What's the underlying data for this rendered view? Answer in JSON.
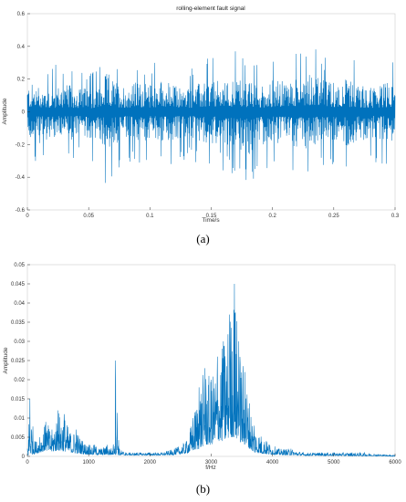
{
  "colors": {
    "series": "#0072BD",
    "axis": "#333333",
    "frame": "#cccccc"
  },
  "chart_data": [
    {
      "type": "line",
      "title": "rolling-element fault signal",
      "xlabel": "Time/s",
      "ylabel": "Amplitude",
      "panel_label": "(a)",
      "xlim": [
        0,
        0.3
      ],
      "ylim": [
        -0.6,
        0.6
      ],
      "xticks": [
        0,
        0.05,
        0.1,
        0.15,
        0.2,
        0.25,
        0.3
      ],
      "xtick_labels": [
        "0",
        "0.05",
        "0.1",
        "0.15",
        "0.2",
        "0.25",
        "0.3"
      ],
      "yticks": [
        -0.6,
        -0.4,
        -0.2,
        0,
        0.2,
        0.4,
        0.6
      ],
      "ytick_labels": [
        "-0.6",
        "-0.4",
        "-0.2",
        "0",
        "0.2",
        "0.4",
        "0.6"
      ],
      "grid": false,
      "series": [
        {
          "x": [
            0,
            0.01,
            0.02,
            0.03,
            0.04,
            0.05,
            0.06,
            0.065,
            0.07,
            0.08,
            0.09,
            0.1,
            0.11,
            0.12,
            0.13,
            0.14,
            0.15,
            0.16,
            0.17,
            0.18,
            0.19,
            0.2,
            0.21,
            0.22,
            0.23,
            0.24,
            0.25,
            0.26,
            0.27,
            0.28,
            0.29,
            0.3
          ],
          "max": [
            0.32,
            0.3,
            0.28,
            0.31,
            0.29,
            0.26,
            0.3,
            0.45,
            0.36,
            0.3,
            0.34,
            0.31,
            0.37,
            0.3,
            0.28,
            0.32,
            0.36,
            0.33,
            0.4,
            0.34,
            0.3,
            0.36,
            0.34,
            0.38,
            0.5,
            0.36,
            0.34,
            0.37,
            0.31,
            0.28,
            0.33,
            0.34
          ],
          "min": [
            -0.3,
            -0.35,
            -0.3,
            -0.33,
            -0.3,
            -0.3,
            -0.35,
            -0.48,
            -0.38,
            -0.32,
            -0.35,
            -0.3,
            -0.36,
            -0.32,
            -0.3,
            -0.33,
            -0.35,
            -0.36,
            -0.4,
            -0.5,
            -0.38,
            -0.35,
            -0.36,
            -0.4,
            -0.42,
            -0.35,
            -0.32,
            -0.38,
            -0.34,
            -0.3,
            -0.32,
            -0.32
          ]
        }
      ]
    },
    {
      "type": "line",
      "title": "",
      "xlabel": "f/Hz",
      "ylabel": "Amplitude",
      "panel_label": "(b)",
      "xlim": [
        0,
        6000
      ],
      "ylim": [
        0,
        0.05
      ],
      "xticks": [
        0,
        1000,
        2000,
        3000,
        4000,
        5000,
        6000
      ],
      "xtick_labels": [
        "0",
        "1000",
        "2000",
        "3000",
        "4000",
        "5000",
        "6000"
      ],
      "yticks": [
        0,
        0.005,
        0.01,
        0.015,
        0.02,
        0.025,
        0.03,
        0.035,
        0.04,
        0.045,
        0.05
      ],
      "ytick_labels": [
        "0",
        "0.005",
        "0.01",
        "0.015",
        "0.02",
        "0.025",
        "0.03",
        "0.035",
        "0.04",
        "0.045",
        "0.05"
      ],
      "grid": false,
      "series": [
        {
          "x": [
            0,
            40,
            120,
            200,
            300,
            400,
            500,
            600,
            700,
            800,
            900,
            1000,
            1100,
            1200,
            1300,
            1400,
            1440,
            1500,
            1600,
            1800,
            2000,
            2200,
            2400,
            2600,
            2700,
            2800,
            2900,
            3000,
            3100,
            3200,
            3300,
            3380,
            3450,
            3550,
            3700,
            3900,
            4100,
            4300,
            4500,
            4800,
            5000,
            5300,
            5500,
            5800,
            6000
          ],
          "peak": [
            0.002,
            0.015,
            0.004,
            0.005,
            0.009,
            0.007,
            0.012,
            0.011,
            0.006,
            0.007,
            0.004,
            0.003,
            0.003,
            0.002,
            0.003,
            0.002,
            0.025,
            0.002,
            0.001,
            0.001,
            0.001,
            0.001,
            0.002,
            0.004,
            0.01,
            0.018,
            0.023,
            0.02,
            0.026,
            0.03,
            0.037,
            0.045,
            0.03,
            0.022,
            0.008,
            0.004,
            0.002,
            0.002,
            0.001,
            0.001,
            0.001,
            0.001,
            0.001,
            0.0005,
            0.0005
          ],
          "floor": [
            0,
            0.0005,
            0.0006,
            0.001,
            0.0015,
            0.0012,
            0.0015,
            0.0013,
            0.001,
            0.0008,
            0.0006,
            0.0005,
            0.0004,
            0.0004,
            0.0004,
            0.0004,
            0.0004,
            0.0003,
            0.0003,
            0.0003,
            0.0003,
            0.0003,
            0.0004,
            0.0008,
            0.0015,
            0.002,
            0.003,
            0.003,
            0.004,
            0.004,
            0.005,
            0.005,
            0.004,
            0.003,
            0.001,
            0.0006,
            0.0004,
            0.0003,
            0.0002,
            0.0002,
            0.0002,
            0.0001,
            0.0001,
            0.0001,
            0
          ]
        }
      ]
    }
  ]
}
